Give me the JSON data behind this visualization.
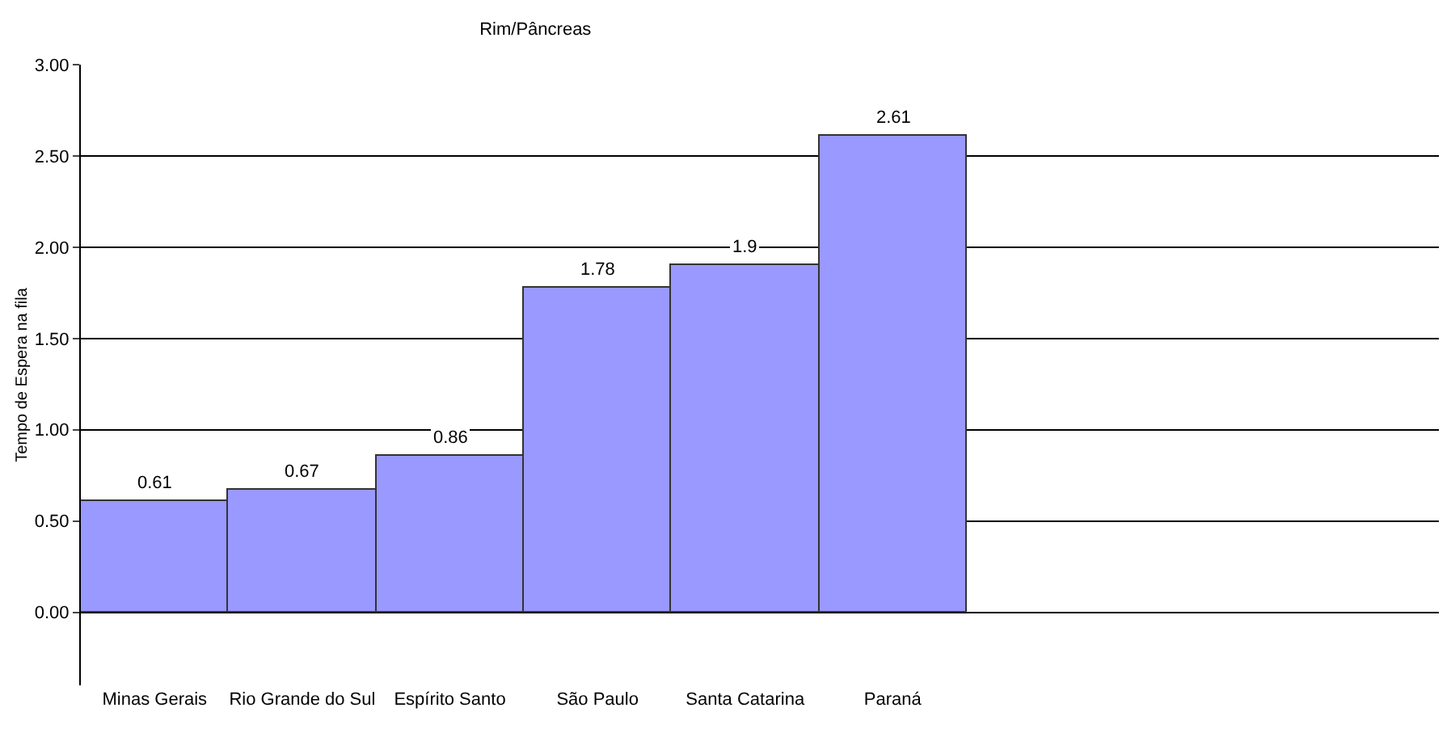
{
  "chart_data": {
    "type": "bar",
    "title": "Rim/Pâncreas",
    "ylabel": "Tempo de Espera na fila",
    "categories": [
      "Minas Gerais",
      "Rio Grande do Sul",
      "Espírito Santo",
      "São Paulo",
      "Santa Catarina",
      "Paraná"
    ],
    "values": [
      0.61,
      0.67,
      0.86,
      1.78,
      1.9,
      2.61
    ],
    "color": "#9999ff",
    "ylim": [
      -0.4,
      3.0
    ],
    "yticks": [
      {
        "value": 0,
        "label": "0.00"
      },
      {
        "value": 0.5,
        "label": "0.50"
      },
      {
        "value": 1,
        "label": "1.00"
      },
      {
        "value": 1.5,
        "label": "1.50"
      },
      {
        "value": 2,
        "label": "2.00"
      },
      {
        "value": 2.5,
        "label": "2.50"
      },
      {
        "value": 3,
        "label": "3.00"
      }
    ],
    "value_labels": [
      "0.61",
      "0.67",
      "0.86",
      "1.78",
      "1.9",
      "2.61"
    ],
    "grid": "y"
  }
}
